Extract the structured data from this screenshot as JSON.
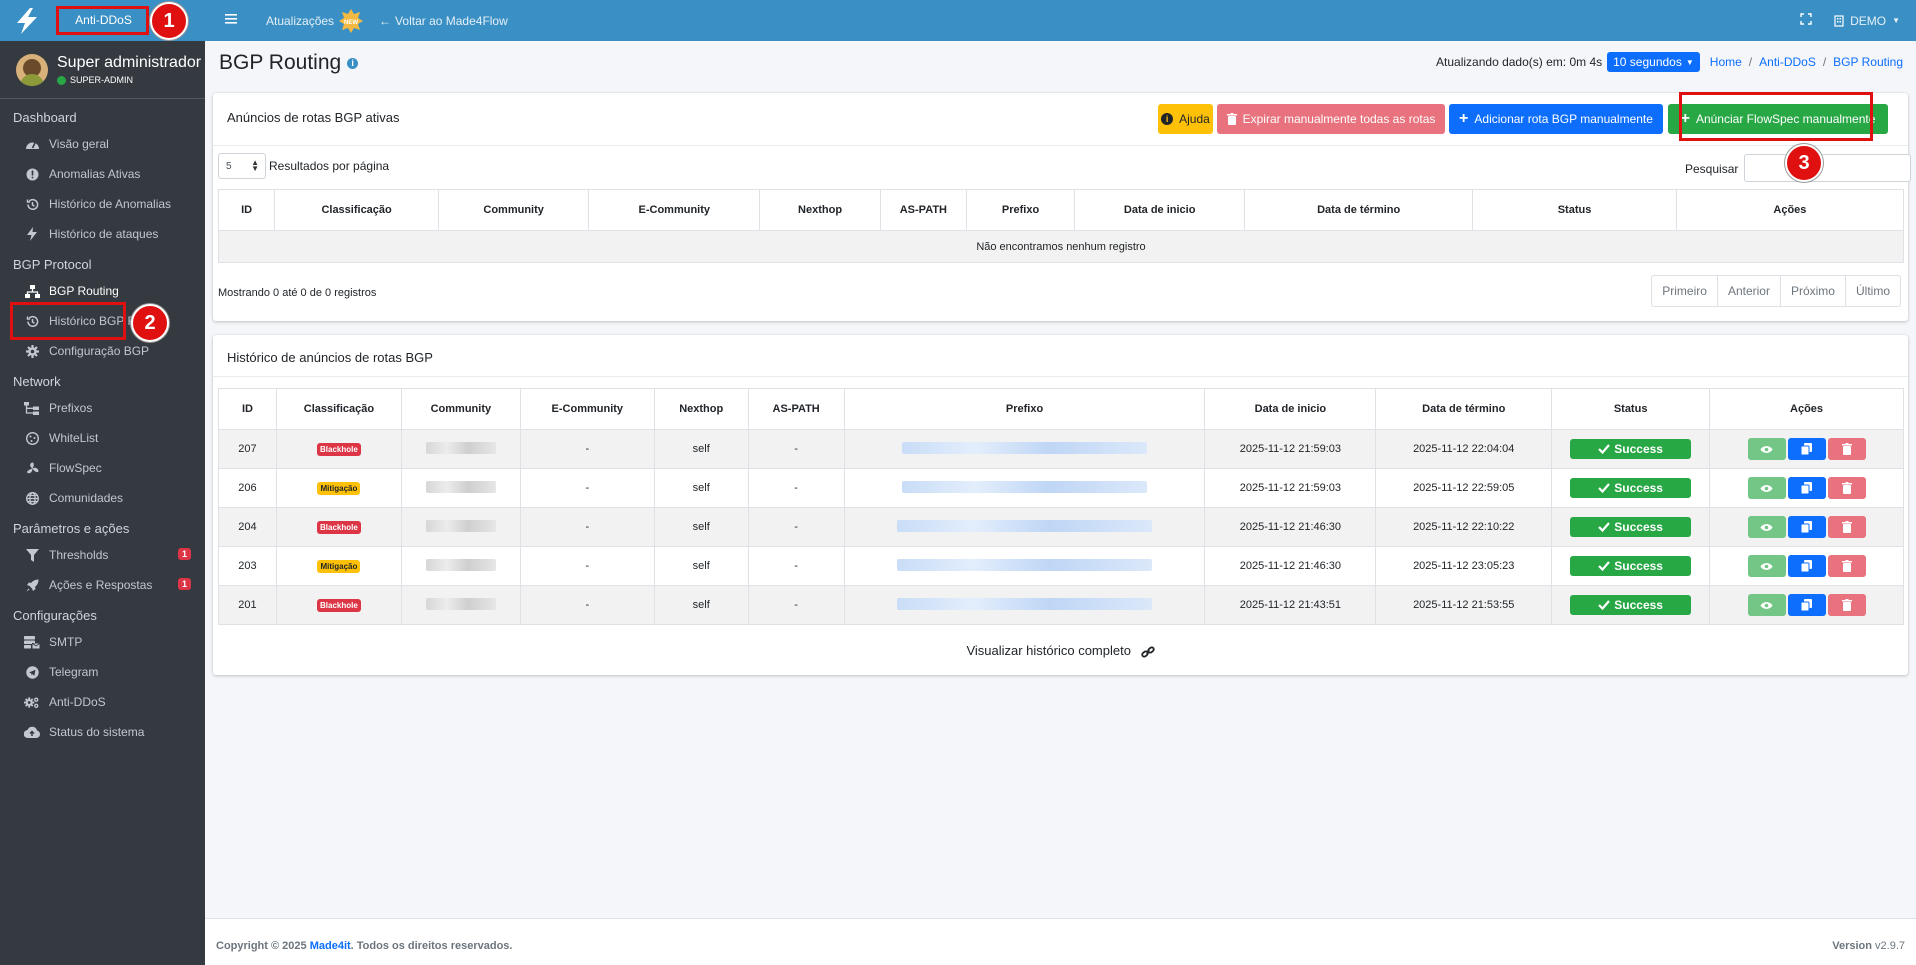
{
  "brand": {
    "name": "Anti-DDoS"
  },
  "user": {
    "name": "Super administrador",
    "role": "SUPER-ADMIN"
  },
  "sidebar": {
    "sections": [
      {
        "header": "Dashboard",
        "items": [
          {
            "label": "Visão geral",
            "icon": "gauge-icon"
          },
          {
            "label": "Anomalias Ativas",
            "icon": "alert-circle-icon"
          },
          {
            "label": "Histórico de Anomalias",
            "icon": "history-icon"
          },
          {
            "label": "Histórico de ataques",
            "icon": "bolt-icon"
          }
        ]
      },
      {
        "header": "BGP Protocol",
        "items": [
          {
            "label": "BGP Routing",
            "icon": "network-icon"
          },
          {
            "label": "Histórico BGP Routing",
            "icon": "history-icon"
          },
          {
            "label": "Configuração BGP",
            "icon": "gear-icon"
          }
        ]
      },
      {
        "header": "Network",
        "items": [
          {
            "label": "Prefixos",
            "icon": "sitemap-icon"
          },
          {
            "label": "WhiteList",
            "icon": "cookie-icon"
          },
          {
            "label": "FlowSpec",
            "icon": "fan-icon"
          },
          {
            "label": "Comunidades",
            "icon": "globe-icon"
          }
        ]
      },
      {
        "header": "Parâmetros e ações",
        "items": [
          {
            "label": "Thresholds",
            "icon": "filter-icon",
            "badge": "1"
          },
          {
            "label": "Ações e Respostas",
            "icon": "rocket-icon",
            "badge": "1"
          }
        ]
      },
      {
        "header": "Configurações",
        "items": [
          {
            "label": "SMTP",
            "icon": "mail-server-icon"
          },
          {
            "label": "Telegram",
            "icon": "telegram-icon"
          },
          {
            "label": "Anti-DDoS",
            "icon": "gears-icon"
          },
          {
            "label": "Status do sistema",
            "icon": "cloud-upload-icon"
          }
        ]
      }
    ]
  },
  "topbar": {
    "updates": "Atualizações",
    "back": "Voltar ao Made4Flow",
    "account": "DEMO"
  },
  "page": {
    "title": "BGP Routing",
    "refresh_label": "Atualizando dado(s) em: 0m 4s",
    "refresh_interval": "10 segundos",
    "breadcrumb": [
      "Home",
      "Anti-DDoS",
      "BGP Routing"
    ]
  },
  "active_card": {
    "title": "Anúncios de rotas BGP ativas",
    "buttons": {
      "help": "Ajuda",
      "expire": "Expirar manualmente todas as rotas",
      "add": "Adicionar rota BGP manualmente",
      "flowspec": "Anúnciar FlowSpec manualmente"
    },
    "page_length": "5",
    "page_length_label": "Resultados por página",
    "search_label": "Pesquisar",
    "columns": [
      "ID",
      "Classificação",
      "Community",
      "E-Community",
      "Nexthop",
      "AS-PATH",
      "Prefixo",
      "Data de inicio",
      "Data de término",
      "Status",
      "Ações"
    ],
    "empty": "Não encontramos nenhum registro",
    "showing": "Mostrando 0 até 0 de 0 registros",
    "pager": [
      "Primeiro",
      "Anterior",
      "Próximo",
      "Último"
    ]
  },
  "history_card": {
    "title": "Histórico de anúncios de rotas BGP",
    "columns": [
      "ID",
      "Classificação",
      "Community",
      "E-Community",
      "Nexthop",
      "AS-PATH",
      "Prefixo",
      "Data de inicio",
      "Data de término",
      "Status",
      "Ações"
    ],
    "rows": [
      {
        "id": "207",
        "class": "Blackhole",
        "e_community": "-",
        "nexthop": "self",
        "as_path": "-",
        "start": "2025-11-12 21:59:03",
        "end": "2025-11-12 22:04:04",
        "status": "Success"
      },
      {
        "id": "206",
        "class": "Mitigação",
        "e_community": "-",
        "nexthop": "self",
        "as_path": "-",
        "start": "2025-11-12 21:59:03",
        "end": "2025-11-12 22:59:05",
        "status": "Success"
      },
      {
        "id": "204",
        "class": "Blackhole",
        "e_community": "-",
        "nexthop": "self",
        "as_path": "-",
        "start": "2025-11-12 21:46:30",
        "end": "2025-11-12 22:10:22",
        "status": "Success"
      },
      {
        "id": "203",
        "class": "Mitigação",
        "e_community": "-",
        "nexthop": "self",
        "as_path": "-",
        "start": "2025-11-12 21:46:30",
        "end": "2025-11-12 23:05:23",
        "status": "Success"
      },
      {
        "id": "201",
        "class": "Blackhole",
        "e_community": "-",
        "nexthop": "self",
        "as_path": "-",
        "start": "2025-11-12 21:43:51",
        "end": "2025-11-12 21:53:55",
        "status": "Success"
      }
    ],
    "full_history": "Visualizar histórico completo"
  },
  "footer": {
    "copyright": "Copyright © 2025",
    "company": "Made4it",
    "rights": ". Todos os direitos reservados.",
    "version_label": "Version",
    "version": "v2.9.7"
  },
  "markers": [
    "1",
    "2",
    "3"
  ],
  "colors": {
    "primary": "#3a8fc4",
    "sidebar": "#343a40",
    "success": "#28a745",
    "danger": "#dc3545",
    "warning": "#ffc107",
    "highlight": "#e01010"
  }
}
